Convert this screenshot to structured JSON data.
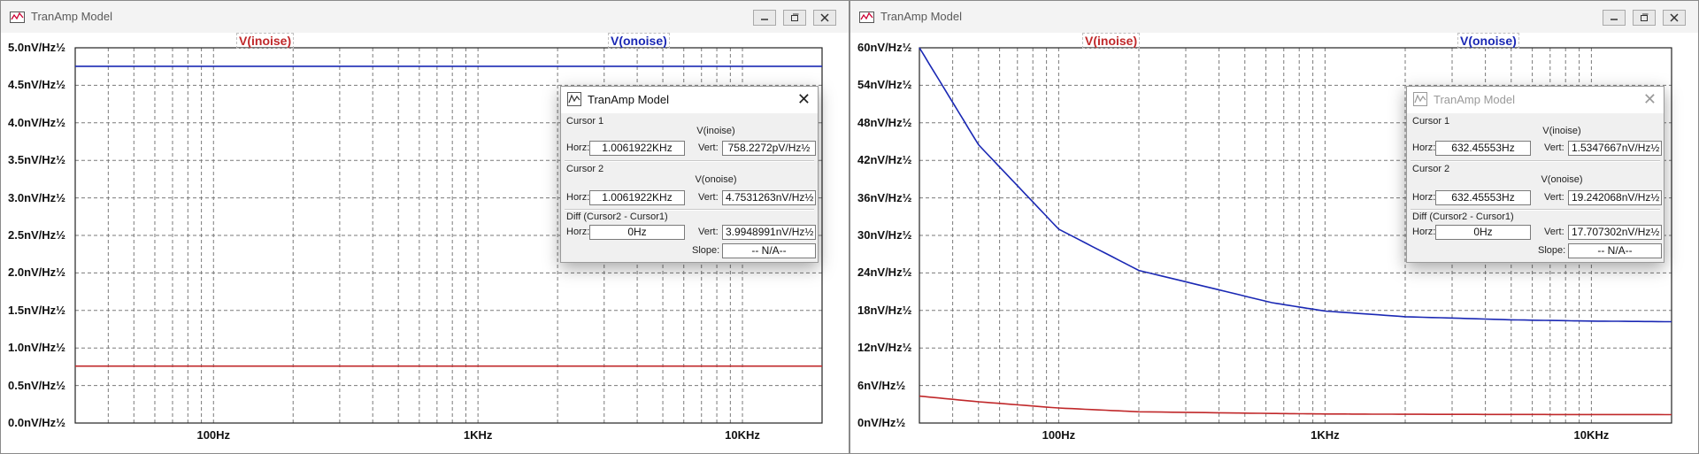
{
  "left_window": {
    "title": "TranAmp Model",
    "traces": [
      {
        "label": "V(inoise)",
        "color": "#c0282a"
      },
      {
        "label": "V(onoise)",
        "color": "#1a28b4"
      }
    ],
    "y_ticks": [
      "5.0nV/Hz½",
      "4.5nV/Hz½",
      "4.0nV/Hz½",
      "3.5nV/Hz½",
      "3.0nV/Hz½",
      "2.5nV/Hz½",
      "2.0nV/Hz½",
      "1.5nV/Hz½",
      "1.0nV/Hz½",
      "0.5nV/Hz½",
      "0.0nV/Hz½"
    ],
    "x_ticks": [
      "100Hz",
      "1KHz",
      "10KHz"
    ],
    "cursor_dialog": {
      "title": "TranAmp Model",
      "cursor1_label": "Cursor 1",
      "cursor1_trace": "V(inoise)",
      "horz_label": "Horz:",
      "vert_label": "Vert:",
      "cursor1_horz": "1.0061922KHz",
      "cursor1_vert": "758.2272pV/Hz½",
      "cursor2_label": "Cursor 2",
      "cursor2_trace": "V(onoise)",
      "cursor2_horz": "1.0061922KHz",
      "cursor2_vert": "4.7531263nV/Hz½",
      "diff_label": "Diff (Cursor2 - Cursor1)",
      "diff_horz": "0Hz",
      "diff_vert": "3.9948991nV/Hz½",
      "slope_label": "Slope:",
      "slope_value": "-- N/A--"
    }
  },
  "right_window": {
    "title": "TranAmp Model",
    "traces": [
      {
        "label": "V(inoise)",
        "color": "#c0282a"
      },
      {
        "label": "V(onoise)",
        "color": "#1a28b4"
      }
    ],
    "y_ticks": [
      "60nV/Hz½",
      "54nV/Hz½",
      "48nV/Hz½",
      "42nV/Hz½",
      "36nV/Hz½",
      "30nV/Hz½",
      "24nV/Hz½",
      "18nV/Hz½",
      "12nV/Hz½",
      "6nV/Hz½",
      "0nV/Hz½"
    ],
    "x_ticks": [
      "100Hz",
      "1KHz",
      "10KHz"
    ],
    "cursor_dialog": {
      "title": "TranAmp Model",
      "cursor1_label": "Cursor 1",
      "cursor1_trace": "V(inoise)",
      "horz_label": "Horz:",
      "vert_label": "Vert:",
      "cursor1_horz": "632.45553Hz",
      "cursor1_vert": "1.5347667nV/Hz½",
      "cursor2_label": "Cursor 2",
      "cursor2_trace": "V(onoise)",
      "cursor2_horz": "632.45553Hz",
      "cursor2_vert": "19.242068nV/Hz½",
      "diff_label": "Diff (Cursor2 - Cursor1)",
      "diff_horz": "0Hz",
      "diff_vert": "17.707302nV/Hz½",
      "slope_label": "Slope:",
      "slope_value": "-- N/A--"
    }
  },
  "chart_data": [
    {
      "type": "line",
      "x_scale": "log",
      "xlim_hz": [
        30,
        20000
      ],
      "ylim": [
        0,
        5.0
      ],
      "y_unit": "nV/Hz½",
      "grid": true,
      "series": [
        {
          "name": "V(inoise)",
          "x": [
            30,
            20000
          ],
          "values": [
            0.758,
            0.758
          ]
        },
        {
          "name": "V(onoise)",
          "x": [
            30,
            20000
          ],
          "values": [
            4.753,
            4.753
          ]
        }
      ]
    },
    {
      "type": "line",
      "x_scale": "log",
      "xlim_hz": [
        30,
        20000
      ],
      "ylim": [
        0,
        60
      ],
      "y_unit": "nV/Hz½",
      "grid": true,
      "series": [
        {
          "name": "V(inoise)",
          "x": [
            30,
            50,
            100,
            200,
            632,
            1000,
            2000,
            5000,
            10000,
            20000
          ],
          "values": [
            4.3,
            3.4,
            2.4,
            1.8,
            1.53,
            1.45,
            1.4,
            1.37,
            1.36,
            1.35
          ]
        },
        {
          "name": "V(onoise)",
          "x": [
            30,
            50,
            100,
            200,
            632,
            1000,
            2000,
            5000,
            10000,
            20000
          ],
          "values": [
            60,
            44.5,
            31.0,
            24.4,
            19.24,
            17.9,
            17.0,
            16.5,
            16.3,
            16.2
          ]
        }
      ]
    }
  ]
}
